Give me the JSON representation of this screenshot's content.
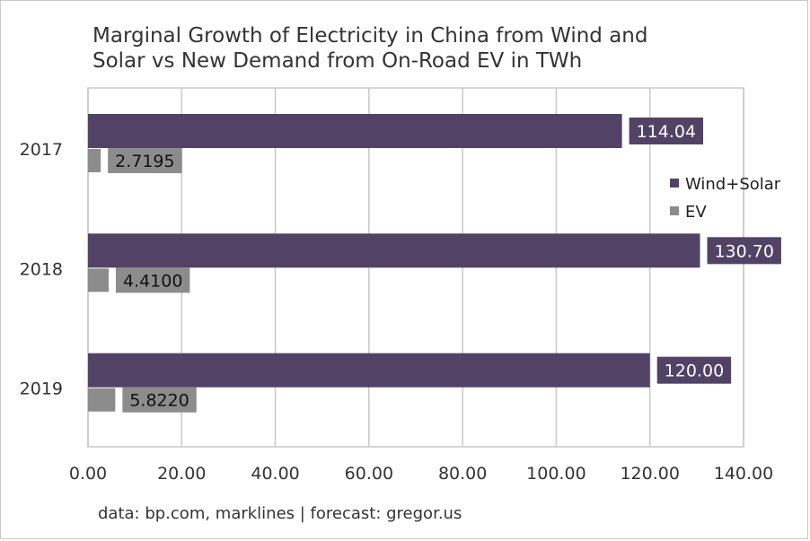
{
  "chart_data": {
    "type": "bar",
    "orientation": "horizontal",
    "title": [
      "Marginal Growth of Electricity in China from Wind and",
      "Solar vs New Demand from On-Road EV in TWh"
    ],
    "categories": [
      "2017",
      "2018",
      "2019"
    ],
    "series": [
      {
        "name": "Wind+Solar",
        "color": "#524266",
        "values": [
          114.04,
          130.7,
          120.0
        ],
        "labels": [
          "114.04",
          "130.70",
          "120.00"
        ]
      },
      {
        "name": "EV",
        "color": "#8c8c8c",
        "values": [
          2.7195,
          4.41,
          5.822
        ],
        "labels": [
          "2.7195",
          "4.4100",
          "5.8220"
        ]
      }
    ],
    "xlim": [
      0,
      140
    ],
    "xticks": [
      "0.00",
      "20.00",
      "40.00",
      "60.00",
      "80.00",
      "100.00",
      "120.00",
      "140.00"
    ],
    "grid": "vertical",
    "legend": "right",
    "source": "data: bp.com, marklines | forecast: gregor.us"
  }
}
